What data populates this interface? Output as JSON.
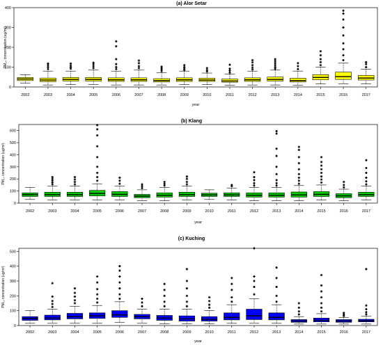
{
  "chart_data": [
    {
      "type": "box",
      "title": "(a) Alor Setar",
      "xlabel": "year",
      "ylabel": "PM₁₀ concentration (ug/m³)",
      "yticks": [
        0,
        100,
        200,
        300,
        400
      ],
      "ylim": [
        0,
        400
      ],
      "color": "#ffff00",
      "categories": [
        "2002",
        "2003",
        "2004",
        "2005",
        "2006",
        "2007",
        "2008",
        "2009",
        "2010",
        "2011",
        "2012",
        "2013",
        "2014",
        "2015",
        "2016",
        "2017"
      ],
      "boxes": [
        {
          "min": 20,
          "q1": 32,
          "median": 40,
          "q3": 48,
          "max": 62,
          "outliers": []
        },
        {
          "min": 10,
          "q1": 27,
          "median": 35,
          "q3": 45,
          "max": 80,
          "outliers": [
            90,
            100,
            110,
            118
          ]
        },
        {
          "min": 12,
          "q1": 30,
          "median": 38,
          "q3": 48,
          "max": 80,
          "outliers": [
            92,
            100,
            108,
            118
          ]
        },
        {
          "min": 12,
          "q1": 30,
          "median": 38,
          "q3": 48,
          "max": 85,
          "outliers": [
            95,
            105,
            115,
            122
          ]
        },
        {
          "min": 10,
          "q1": 28,
          "median": 36,
          "q3": 46,
          "max": 80,
          "outliers": [
            90,
            100,
            115,
            140,
            205,
            230
          ]
        },
        {
          "min": 10,
          "q1": 28,
          "median": 36,
          "q3": 46,
          "max": 85,
          "outliers": [
            95,
            105,
            120,
            133
          ]
        },
        {
          "min": 10,
          "q1": 25,
          "median": 32,
          "q3": 42,
          "max": 72,
          "outliers": [
            80,
            88,
            95,
            102
          ]
        },
        {
          "min": 12,
          "q1": 28,
          "median": 36,
          "q3": 46,
          "max": 80,
          "outliers": [
            85,
            92,
            100,
            110
          ]
        },
        {
          "min": 12,
          "q1": 28,
          "median": 35,
          "q3": 44,
          "max": 70,
          "outliers": [
            78,
            85,
            95
          ]
        },
        {
          "min": 8,
          "q1": 24,
          "median": 30,
          "q3": 40,
          "max": 65,
          "outliers": [
            72,
            82,
            92,
            112
          ]
        },
        {
          "min": 10,
          "q1": 28,
          "median": 36,
          "q3": 46,
          "max": 80,
          "outliers": [
            88,
            98,
            110,
            124,
            135
          ]
        },
        {
          "min": 10,
          "q1": 30,
          "median": 38,
          "q3": 50,
          "max": 85,
          "outliers": [
            92,
            100,
            110,
            120,
            130,
            140
          ]
        },
        {
          "min": 8,
          "q1": 25,
          "median": 32,
          "q3": 44,
          "max": 80,
          "outliers": [
            90,
            105,
            120
          ]
        },
        {
          "min": 15,
          "q1": 36,
          "median": 48,
          "q3": 62,
          "max": 100,
          "outliers": [
            110,
            125,
            140,
            160,
            180
          ]
        },
        {
          "min": 15,
          "q1": 38,
          "median": 52,
          "q3": 75,
          "max": 120,
          "outliers": [
            135,
            160,
            190,
            220,
            260,
            300,
            340,
            370,
            385
          ]
        },
        {
          "min": 15,
          "q1": 35,
          "median": 45,
          "q3": 58,
          "max": 90,
          "outliers": [
            100,
            115,
            125
          ]
        }
      ]
    },
    {
      "type": "box",
      "title": "(b) Klang",
      "xlabel": "year",
      "ylabel": "PM₁₀ concentration (ug/m³)",
      "yticks": [
        0,
        100,
        200,
        300,
        400,
        500,
        600
      ],
      "ylim": [
        0,
        650
      ],
      "color": "#00cc00",
      "categories": [
        "2002",
        "2003",
        "2004",
        "2005",
        "2006",
        "2007",
        "2008",
        "2009",
        "2010",
        "2011",
        "2012",
        "2013",
        "2014",
        "2015",
        "2016",
        "2017"
      ],
      "boxes": [
        {
          "min": 30,
          "q1": 55,
          "median": 70,
          "q3": 85,
          "max": 130,
          "outliers": []
        },
        {
          "min": 25,
          "q1": 55,
          "median": 70,
          "q3": 90,
          "max": 140,
          "outliers": [
            155,
            170,
            185,
            200,
            215
          ]
        },
        {
          "min": 25,
          "q1": 55,
          "median": 70,
          "q3": 90,
          "max": 140,
          "outliers": [
            155,
            175,
            195,
            215
          ]
        },
        {
          "min": 25,
          "q1": 60,
          "median": 80,
          "q3": 105,
          "max": 160,
          "outliers": [
            185,
            215,
            250,
            300,
            380,
            470,
            560,
            610,
            645
          ]
        },
        {
          "min": 25,
          "q1": 55,
          "median": 72,
          "q3": 95,
          "max": 140,
          "outliers": [
            160,
            185,
            210
          ]
        },
        {
          "min": 20,
          "q1": 45,
          "median": 58,
          "q3": 72,
          "max": 110,
          "outliers": [
            125,
            140,
            155
          ]
        },
        {
          "min": 20,
          "q1": 50,
          "median": 65,
          "q3": 85,
          "max": 130,
          "outliers": [
            145,
            160,
            175
          ]
        },
        {
          "min": 25,
          "q1": 55,
          "median": 70,
          "q3": 90,
          "max": 140,
          "outliers": [
            155,
            175,
            200,
            220
          ]
        },
        {
          "min": 30,
          "q1": 55,
          "median": 68,
          "q3": 82,
          "max": 110,
          "outliers": []
        },
        {
          "min": 25,
          "q1": 55,
          "median": 68,
          "q3": 85,
          "max": 125,
          "outliers": [
            140,
            150
          ]
        },
        {
          "min": 20,
          "q1": 50,
          "median": 65,
          "q3": 85,
          "max": 130,
          "outliers": [
            145,
            165,
            190,
            215,
            255
          ]
        },
        {
          "min": 20,
          "q1": 50,
          "median": 65,
          "q3": 85,
          "max": 130,
          "outliers": [
            145,
            165,
            190,
            240,
            300,
            390,
            450,
            575,
            595
          ]
        },
        {
          "min": 20,
          "q1": 50,
          "median": 68,
          "q3": 92,
          "max": 145,
          "outliers": [
            160,
            185,
            210,
            240,
            280,
            330,
            380,
            440,
            465
          ]
        },
        {
          "min": 25,
          "q1": 55,
          "median": 72,
          "q3": 95,
          "max": 150,
          "outliers": [
            170,
            195,
            220,
            250,
            280,
            310,
            340,
            380
          ]
        },
        {
          "min": 20,
          "q1": 45,
          "median": 60,
          "q3": 78,
          "max": 115,
          "outliers": [
            130,
            150,
            175
          ]
        },
        {
          "min": 25,
          "q1": 55,
          "median": 70,
          "q3": 90,
          "max": 140,
          "outliers": [
            155,
            180,
            210,
            250,
            290,
            355
          ]
        }
      ]
    },
    {
      "type": "box",
      "title": "(c) Kuching",
      "xlabel": "year",
      "ylabel": "PM₁₀ concentration (ug/m³)",
      "yticks": [
        0,
        100,
        200,
        300,
        400,
        500
      ],
      "ylim": [
        0,
        520
      ],
      "color": "#0000ff",
      "categories": [
        "2002",
        "2003",
        "2004",
        "2005",
        "2006",
        "2007",
        "2008",
        "2009",
        "2010",
        "2011",
        "2012",
        "2013",
        "2014",
        "2015",
        "2016",
        "2017"
      ],
      "boxes": [
        {
          "min": 15,
          "q1": 35,
          "median": 48,
          "q3": 60,
          "max": 100,
          "outliers": []
        },
        {
          "min": 15,
          "q1": 38,
          "median": 50,
          "q3": 70,
          "max": 110,
          "outliers": [
            125,
            145,
            165,
            195,
            285
          ]
        },
        {
          "min": 15,
          "q1": 45,
          "median": 60,
          "q3": 82,
          "max": 130,
          "outliers": [
            150,
            170,
            195,
            220,
            250
          ]
        },
        {
          "min": 15,
          "q1": 48,
          "median": 65,
          "q3": 85,
          "max": 135,
          "outliers": [
            155,
            180,
            210,
            245,
            290,
            330
          ]
        },
        {
          "min": 20,
          "q1": 55,
          "median": 72,
          "q3": 100,
          "max": 160,
          "outliers": [
            180,
            210,
            250,
            290,
            330,
            370,
            400
          ]
        },
        {
          "min": 15,
          "q1": 45,
          "median": 60,
          "q3": 75,
          "max": 110,
          "outliers": [
            130,
            155,
            180
          ]
        },
        {
          "min": 12,
          "q1": 35,
          "median": 50,
          "q3": 68,
          "max": 110,
          "outliers": [
            130,
            160,
            200,
            240,
            280
          ]
        },
        {
          "min": 12,
          "q1": 30,
          "median": 45,
          "q3": 65,
          "max": 110,
          "outliers": [
            130,
            160,
            200,
            250,
            300,
            380
          ]
        },
        {
          "min": 12,
          "q1": 30,
          "median": 42,
          "q3": 60,
          "max": 100,
          "outliers": [
            120,
            140,
            165,
            190
          ]
        },
        {
          "min": 15,
          "q1": 38,
          "median": 55,
          "q3": 85,
          "max": 140,
          "outliers": [
            160,
            190,
            240,
            280,
            320
          ]
        },
        {
          "min": 15,
          "q1": 40,
          "median": 65,
          "q3": 110,
          "max": 180,
          "outliers": [
            210,
            260,
            300,
            330,
            520
          ]
        },
        {
          "min": 15,
          "q1": 38,
          "median": 55,
          "q3": 85,
          "max": 140,
          "outliers": [
            160,
            200,
            260,
            320,
            390
          ]
        },
        {
          "min": 10,
          "q1": 22,
          "median": 30,
          "q3": 40,
          "max": 60,
          "outliers": [
            75,
            95,
            120,
            150
          ]
        },
        {
          "min": 10,
          "q1": 25,
          "median": 35,
          "q3": 50,
          "max": 80,
          "outliers": [
            95,
            120,
            150,
            190,
            230,
            270,
            340
          ]
        },
        {
          "min": 10,
          "q1": 22,
          "median": 30,
          "q3": 40,
          "max": 55,
          "outliers": [
            65,
            75,
            85
          ]
        },
        {
          "min": 10,
          "q1": 25,
          "median": 32,
          "q3": 42,
          "max": 62,
          "outliers": [
            75,
            90,
            110,
            135,
            380
          ]
        }
      ]
    }
  ]
}
